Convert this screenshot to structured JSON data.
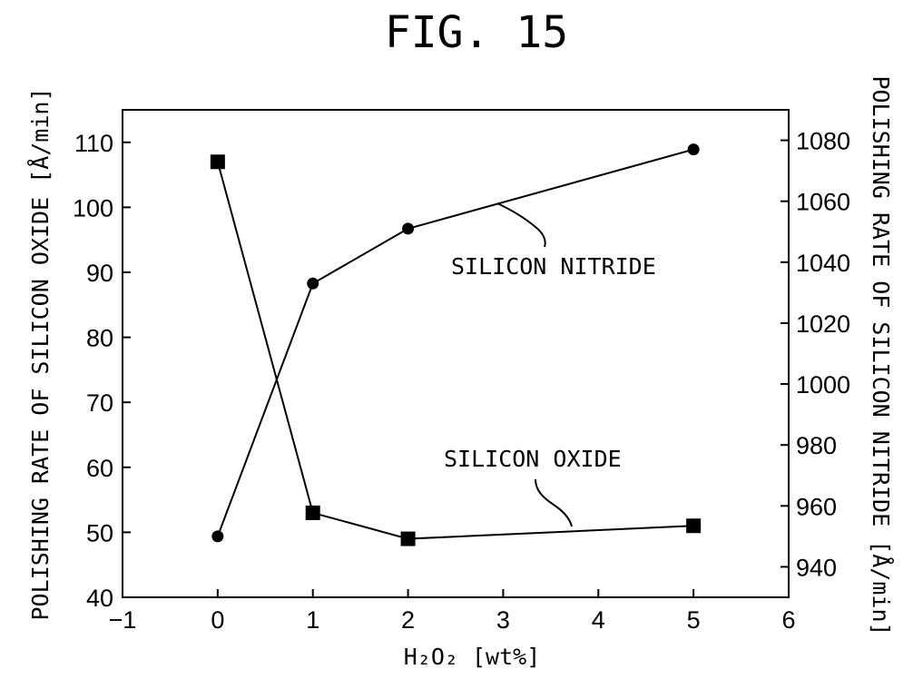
{
  "chart_data": {
    "type": "line",
    "title": "FIG. 15",
    "xlabel": "H₂O₂ [wt%]",
    "ylabel": "POLISHING RATE OF SILICON OXIDE [Å/min]",
    "y2label": "POLISHING RATE OF SILICON NITRIDE [Å/min]",
    "xlim": [
      -1,
      6
    ],
    "ylim": [
      40,
      115
    ],
    "y2lim": [
      930,
      1090
    ],
    "x_ticks": [
      "−1",
      "0",
      "1",
      "2",
      "3",
      "4",
      "5",
      "6"
    ],
    "y_ticks": [
      "40",
      "50",
      "60",
      "70",
      "80",
      "90",
      "100",
      "110"
    ],
    "y2_ticks": [
      "940",
      "960",
      "980",
      "1000",
      "1020",
      "1040",
      "1060",
      "1080"
    ],
    "grid": false,
    "series": [
      {
        "name": "SILICON OXIDE",
        "axis": "left",
        "marker": "square",
        "x": [
          0,
          1,
          2,
          5
        ],
        "values": [
          107,
          53,
          49,
          51
        ]
      },
      {
        "name": "SILICON NITRIDE",
        "axis": "right",
        "marker": "circle",
        "x": [
          0,
          1,
          2,
          5
        ],
        "values": [
          950,
          1033,
          1051,
          1077
        ]
      }
    ]
  }
}
